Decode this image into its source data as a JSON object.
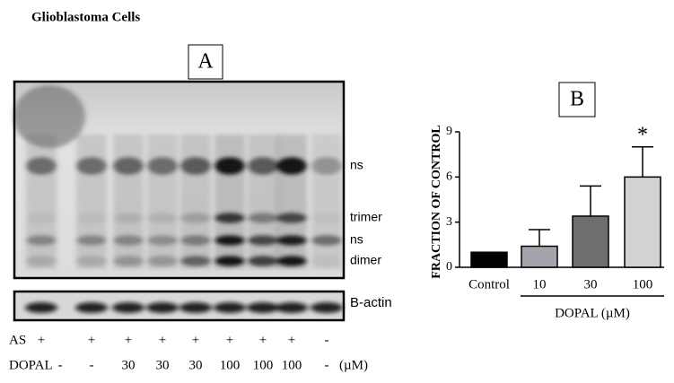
{
  "title": "Glioblastoma Cells",
  "panel_a": {
    "label": "A",
    "band_labels": [
      "ns",
      "trimer",
      "ns",
      "dimer"
    ],
    "loading_label": "B-actin",
    "rows": [
      {
        "name": "AS",
        "values": [
          "+",
          "+",
          "+",
          "+",
          "+",
          "+",
          "+",
          "+",
          "-"
        ]
      },
      {
        "name": "DOPAL",
        "values": [
          "-",
          "-",
          "30",
          "30",
          "30",
          "100",
          "100",
          "100",
          "-"
        ],
        "unit": "(µM)"
      }
    ]
  },
  "chart_data": {
    "type": "bar",
    "panel_label": "B",
    "y_label": "FRACTION OF CONTROL",
    "x_label": "DOPAL (µM)",
    "categories": [
      "Control",
      "10",
      "30",
      "100"
    ],
    "values": [
      1,
      1.4,
      3.4,
      6
    ],
    "errors": [
      null,
      1.1,
      2,
      2
    ],
    "colors": [
      "#000000",
      "#a4a4ac",
      "#6e6e6e",
      "#d2d2d2"
    ],
    "significance": [
      null,
      null,
      null,
      "*"
    ],
    "ylim": [
      0,
      9
    ],
    "yticks": [
      0,
      3,
      6,
      9
    ]
  }
}
